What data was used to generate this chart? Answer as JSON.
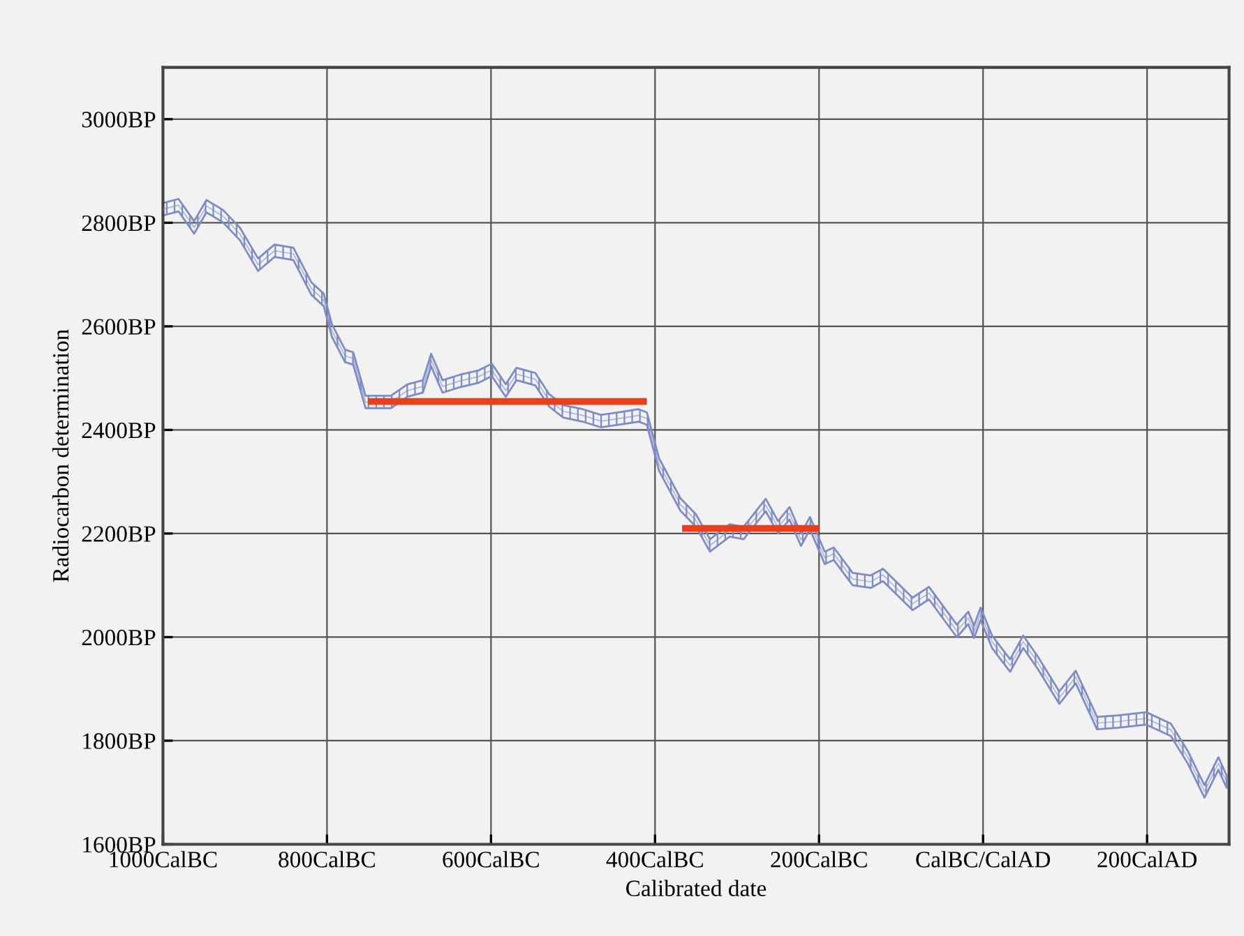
{
  "chart_data": {
    "type": "line",
    "xlabel": "Calibrated date",
    "ylabel": "Radiocarbon determination",
    "xlim": [
      -1000,
      300
    ],
    "ylim": [
      1600,
      3100
    ],
    "xticks": [
      {
        "value": -1000,
        "label": "1000CalBC"
      },
      {
        "value": -800,
        "label": "800CalBC"
      },
      {
        "value": -600,
        "label": "600CalBC"
      },
      {
        "value": -400,
        "label": "400CalBC"
      },
      {
        "value": -200,
        "label": "200CalBC"
      },
      {
        "value": 0,
        "label": "CalBC/CalAD"
      },
      {
        "value": 200,
        "label": "200CalAD"
      }
    ],
    "yticks": [
      {
        "value": 1600,
        "label": "1600BP"
      },
      {
        "value": 1800,
        "label": "1800BP"
      },
      {
        "value": 2000,
        "label": "2000BP"
      },
      {
        "value": 2200,
        "label": "2200BP"
      },
      {
        "value": 2400,
        "label": "2400BP"
      },
      {
        "value": 2600,
        "label": "2600BP"
      },
      {
        "value": 2800,
        "label": "2800BP"
      },
      {
        "value": 3000,
        "label": "3000BP"
      }
    ],
    "grid": true,
    "legend": false,
    "series": [
      {
        "color": "#7f8cc4",
        "x": [
          -1000,
          -981,
          -962,
          -947,
          -927,
          -906,
          -884,
          -864,
          -841,
          -819,
          -804,
          -794,
          -778,
          -768,
          -753,
          -722,
          -702,
          -683,
          -673,
          -659,
          -637,
          -615,
          -599,
          -582,
          -569,
          -546,
          -529,
          -512,
          -488,
          -466,
          -444,
          -420,
          -410,
          -395,
          -369,
          -350,
          -333,
          -309,
          -292,
          -265,
          -250,
          -236,
          -222,
          -211,
          -193,
          -182,
          -159,
          -137,
          -122,
          -86,
          -66,
          -32,
          -18,
          -11,
          -3,
          11,
          33,
          49,
          67,
          93,
          113,
          139,
          165,
          199,
          229,
          250,
          270,
          287,
          297
        ],
        "values": [
          2826,
          2834,
          2791,
          2832,
          2813,
          2778,
          2719,
          2746,
          2740,
          2673,
          2651,
          2592,
          2543,
          2538,
          2454,
          2454,
          2476,
          2484,
          2535,
          2484,
          2495,
          2503,
          2516,
          2476,
          2508,
          2498,
          2457,
          2436,
          2428,
          2417,
          2422,
          2428,
          2422,
          2333,
          2256,
          2225,
          2177,
          2206,
          2201,
          2255,
          2212,
          2239,
          2188,
          2220,
          2153,
          2161,
          2112,
          2107,
          2120,
          2064,
          2085,
          2012,
          2037,
          2010,
          2045,
          1991,
          1945,
          1991,
          1950,
          1883,
          1923,
          1834,
          1837,
          1843,
          1821,
          1767,
          1702,
          1756,
          1721
        ],
        "lower": [
          2814,
          2822,
          2779,
          2820,
          2801,
          2766,
          2707,
          2734,
          2728,
          2661,
          2639,
          2580,
          2531,
          2526,
          2442,
          2442,
          2464,
          2472,
          2523,
          2472,
          2483,
          2491,
          2504,
          2464,
          2496,
          2486,
          2445,
          2424,
          2416,
          2405,
          2410,
          2416,
          2410,
          2321,
          2244,
          2213,
          2165,
          2194,
          2189,
          2243,
          2200,
          2227,
          2176,
          2208,
          2141,
          2149,
          2100,
          2095,
          2108,
          2052,
          2073,
          2000,
          2025,
          1998,
          2033,
          1979,
          1933,
          1979,
          1938,
          1871,
          1911,
          1822,
          1825,
          1831,
          1809,
          1755,
          1690,
          1744,
          1709
        ],
        "upper": [
          2838,
          2846,
          2803,
          2844,
          2825,
          2790,
          2731,
          2758,
          2752,
          2685,
          2663,
          2604,
          2555,
          2550,
          2466,
          2466,
          2488,
          2496,
          2547,
          2496,
          2507,
          2515,
          2528,
          2488,
          2520,
          2510,
          2469,
          2448,
          2440,
          2429,
          2434,
          2440,
          2434,
          2345,
          2268,
          2237,
          2189,
          2218,
          2213,
          2267,
          2224,
          2251,
          2200,
          2232,
          2165,
          2173,
          2124,
          2119,
          2132,
          2076,
          2097,
          2024,
          2049,
          2022,
          2057,
          2003,
          1957,
          2003,
          1962,
          1895,
          1935,
          1846,
          1849,
          1855,
          1833,
          1779,
          1714,
          1768,
          1733
        ]
      },
      {
        "color": "#e8401c",
        "x": [
          -750,
          -410
        ],
        "values": [
          2455,
          2455
        ]
      },
      {
        "color": "#e8401c",
        "x": [
          -367,
          -200
        ],
        "values": [
          2210,
          2210
        ]
      }
    ]
  }
}
